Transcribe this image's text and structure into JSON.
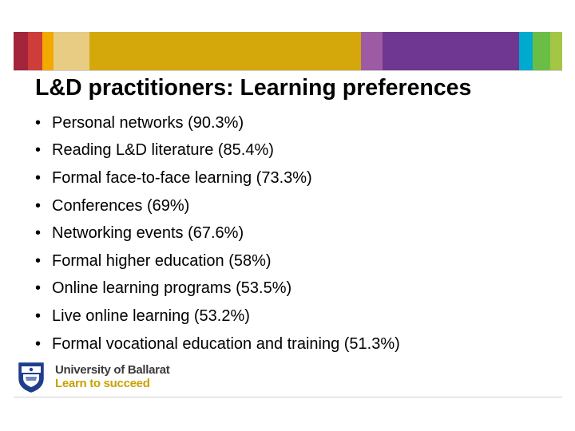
{
  "slide": {
    "title": "L&D practitioners: Learning preferences",
    "bullet_symbol": "•",
    "bullets": [
      "Personal networks (90.3%)",
      "Reading L&D literature (85.4%)",
      "Formal face-to-face learning (73.3%)",
      "Conferences (69%)",
      "Networking events (67.6%)",
      "Formal higher education (58%)",
      "Online learning programs (53.5%)",
      "Live online learning (53.2%)",
      "Formal vocational education and training (51.3%)"
    ]
  },
  "footer": {
    "logo_name": "University of Ballarat",
    "logo_tagline": "Learn to succeed"
  },
  "colors": {
    "band": [
      "#a3243b",
      "#cf3d3a",
      "#f2a900",
      "#e8cc83",
      "#d4a80a",
      "#9d5ba4",
      "#6f3791",
      "#00a9ce",
      "#6bbe45",
      "#a3c644"
    ],
    "logo_name": "#3b3b3b",
    "logo_tagline": "#c8a100",
    "crest_blue": "#1f3f8c"
  }
}
